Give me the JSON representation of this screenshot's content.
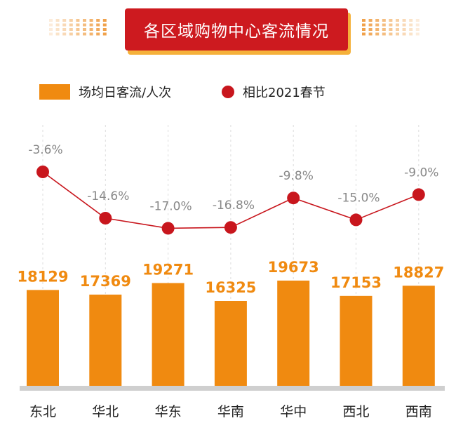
{
  "title": "各区域购物中心客流情况",
  "legend": {
    "bar_label": "场均日客流/人次",
    "line_label": "相比2021春节"
  },
  "colors": {
    "bar": "#f08a10",
    "bar_label": "#f08a10",
    "line": "#c8161d",
    "banner": "#cd1a1f",
    "banner_accent": "#f5b13a",
    "pct_label": "#888888"
  },
  "chart_data": {
    "type": "bar",
    "categories": [
      "东北",
      "华北",
      "华东",
      "华南",
      "华中",
      "西北",
      "西南"
    ],
    "series": [
      {
        "name": "场均日客流/人次",
        "type": "bar",
        "values": [
          18129,
          17369,
          19271,
          16325,
          19673,
          17153,
          18827
        ]
      },
      {
        "name": "相比2021春节",
        "type": "line",
        "values": [
          -3.6,
          -14.6,
          -17.0,
          -16.8,
          -9.8,
          -15.0,
          -9.0
        ],
        "labels": [
          "-3.6%",
          "-14.6%",
          "-17.0%",
          "-16.8%",
          "-9.8%",
          "-15.0%",
          "-9.0%"
        ]
      }
    ],
    "legend_position": "top-left"
  }
}
